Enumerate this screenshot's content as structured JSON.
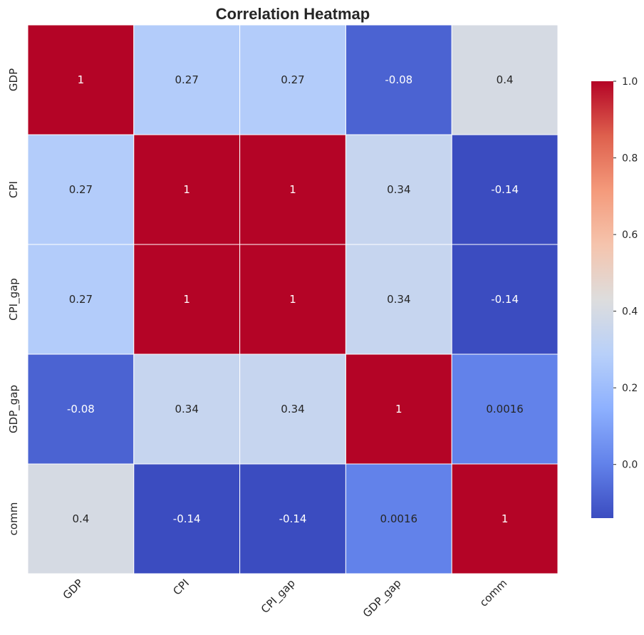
{
  "chart_data": {
    "type": "heatmap",
    "title": "Correlation Heatmap",
    "row_labels": [
      "GDP",
      "CPI",
      "CPI_gap",
      "GDP_gap",
      "comm"
    ],
    "col_labels": [
      "GDP",
      "CPI",
      "CPI_gap",
      "GDP_gap",
      "comm"
    ],
    "values": [
      [
        1,
        0.27,
        0.27,
        -0.08,
        0.4
      ],
      [
        0.27,
        1,
        1,
        0.34,
        -0.14
      ],
      [
        0.27,
        1,
        1,
        0.34,
        -0.14
      ],
      [
        -0.08,
        0.34,
        0.34,
        1,
        0.0016
      ],
      [
        0.4,
        -0.14,
        -0.14,
        0.0016,
        1
      ]
    ],
    "annotations": [
      [
        "1",
        "0.27",
        "0.27",
        "-0.08",
        "0.4"
      ],
      [
        "0.27",
        "1",
        "1",
        "0.34",
        "-0.14"
      ],
      [
        "0.27",
        "1",
        "1",
        "0.34",
        "-0.14"
      ],
      [
        "-0.08",
        "0.34",
        "0.34",
        "1",
        "0.0016"
      ],
      [
        "0.4",
        "-0.14",
        "-0.14",
        "0.0016",
        "1"
      ]
    ],
    "colormap": "coolwarm",
    "vmin": -0.14,
    "vmax": 1.0,
    "colorbar_ticks": [
      "0.0",
      "0.2",
      "0.4",
      "0.6",
      "0.8",
      "1.0"
    ],
    "colorbar_tick_values": [
      0.0,
      0.2,
      0.4,
      0.6,
      0.8,
      1.0
    ],
    "grid": false,
    "colorbar_placement": "right"
  }
}
